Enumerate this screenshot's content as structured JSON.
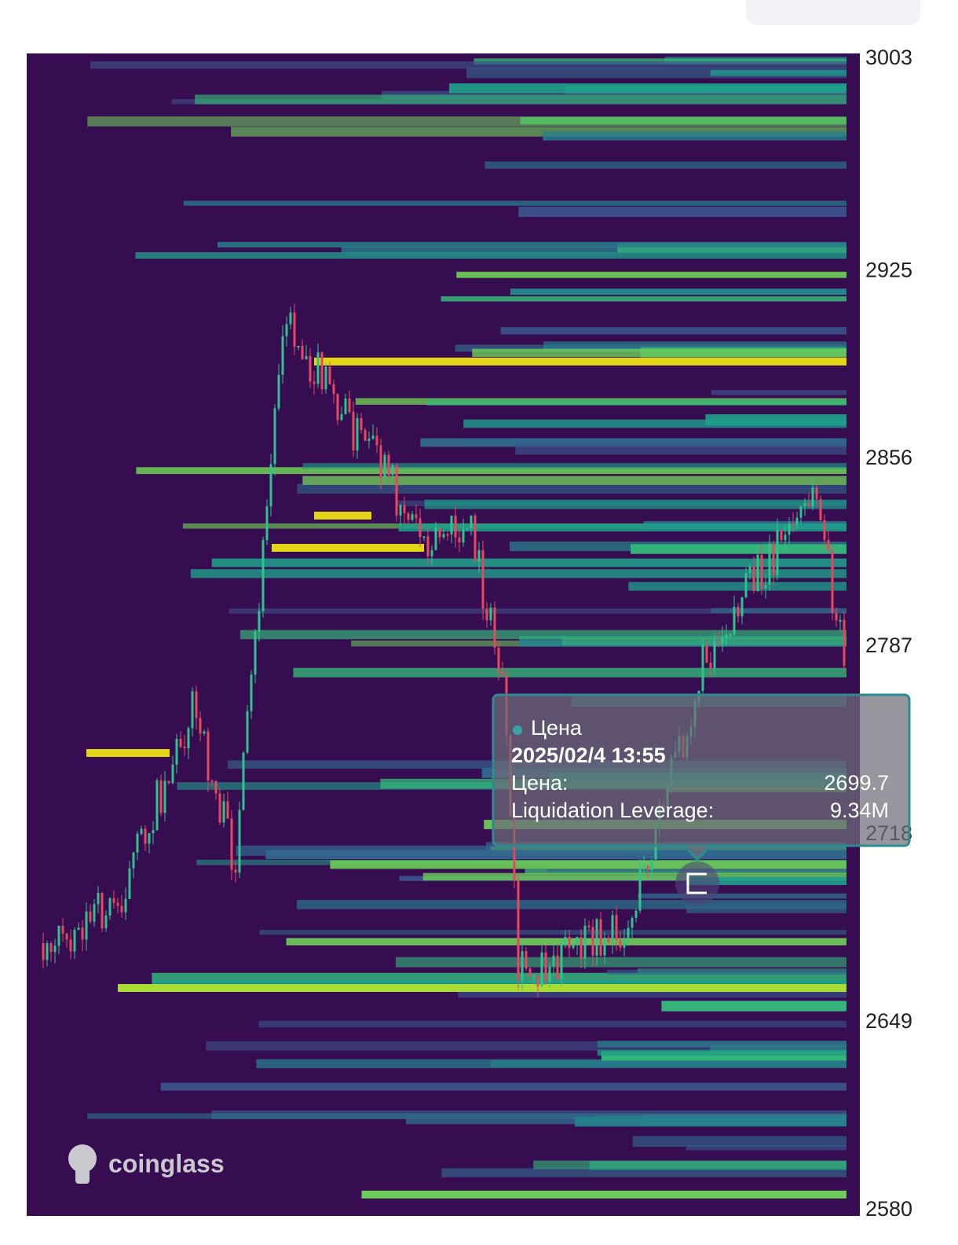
{
  "axis": {
    "ticks": [
      3003,
      2925,
      2856,
      2787,
      2718,
      2649,
      2580
    ]
  },
  "tooltip": {
    "series": "Цена",
    "time": "2025/02/4 13:55",
    "price_label": "Цена:",
    "price": "2699.7",
    "leverage_label": "Liquidation Leverage:",
    "leverage": "9.34M"
  },
  "watermark": "coinglass"
}
